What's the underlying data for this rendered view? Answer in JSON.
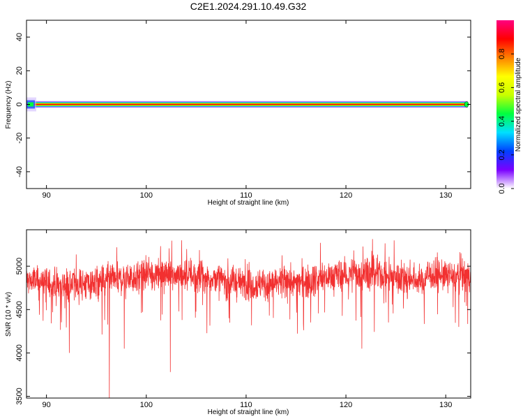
{
  "title": "C2E1.2024.291.10.49.G32",
  "chart_data": [
    {
      "type": "heatmap",
      "xlabel": "Height of straight line (km)",
      "ylabel": "Frequency (Hz)",
      "xlim": [
        88,
        132.5
      ],
      "ylim": [
        -50,
        50
      ],
      "xticks": [
        90,
        100,
        110,
        120,
        130
      ],
      "yticks": [
        40,
        20,
        0,
        -20,
        -40
      ],
      "band_center_hz": 0,
      "colorbar": {
        "label": "Normalized spectral amplitude",
        "range": [
          0,
          1
        ],
        "ticks": [
          0.0,
          0.2,
          0.4,
          0.6,
          0.8
        ],
        "colormap": [
          "#ffffff",
          "#7a00ff",
          "#0040ff",
          "#00e0ff",
          "#00ff40",
          "#c8ff00",
          "#ffff00",
          "#ff8000",
          "#ff0000",
          "#ff0080"
        ]
      }
    },
    {
      "type": "line",
      "xlabel": "Height of straight line (km)",
      "ylabel": "SNR (10 * v/v)",
      "xlim": [
        88,
        132.5
      ],
      "ylim": [
        3480,
        5420
      ],
      "xticks": [
        90,
        100,
        110,
        120,
        130
      ],
      "yticks": [
        3500,
        4000,
        4500,
        5000
      ],
      "color": "#f23030",
      "baseline": 4850,
      "noise_spread": 170,
      "dips": [
        {
          "x": 96.3,
          "y": 3480
        },
        {
          "x": 102.4,
          "y": 3780
        },
        {
          "x": 92.3,
          "y": 4000
        },
        {
          "x": 121.6,
          "y": 4050
        },
        {
          "x": 97.8,
          "y": 4050
        },
        {
          "x": 131.3,
          "y": 4300
        }
      ]
    }
  ]
}
